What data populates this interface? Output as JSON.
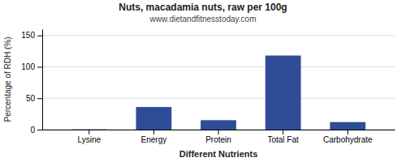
{
  "chart_data": {
    "type": "bar",
    "title": "Nuts, macadamia nuts, raw per 100g",
    "subtitle": "www.dietandfitnesstoday.com",
    "categories": [
      "Lysine",
      "Energy",
      "Protein",
      "Total Fat",
      "Carbohydrate"
    ],
    "values": [
      0.5,
      36,
      15,
      118,
      12
    ],
    "color": "#2e4d96",
    "xlabel": "Different Nutrients",
    "ylabel": "Percentage of RDH (%)",
    "ylim": [
      0,
      160
    ],
    "yticks": [
      0,
      50,
      100,
      150
    ],
    "grid": true
  }
}
